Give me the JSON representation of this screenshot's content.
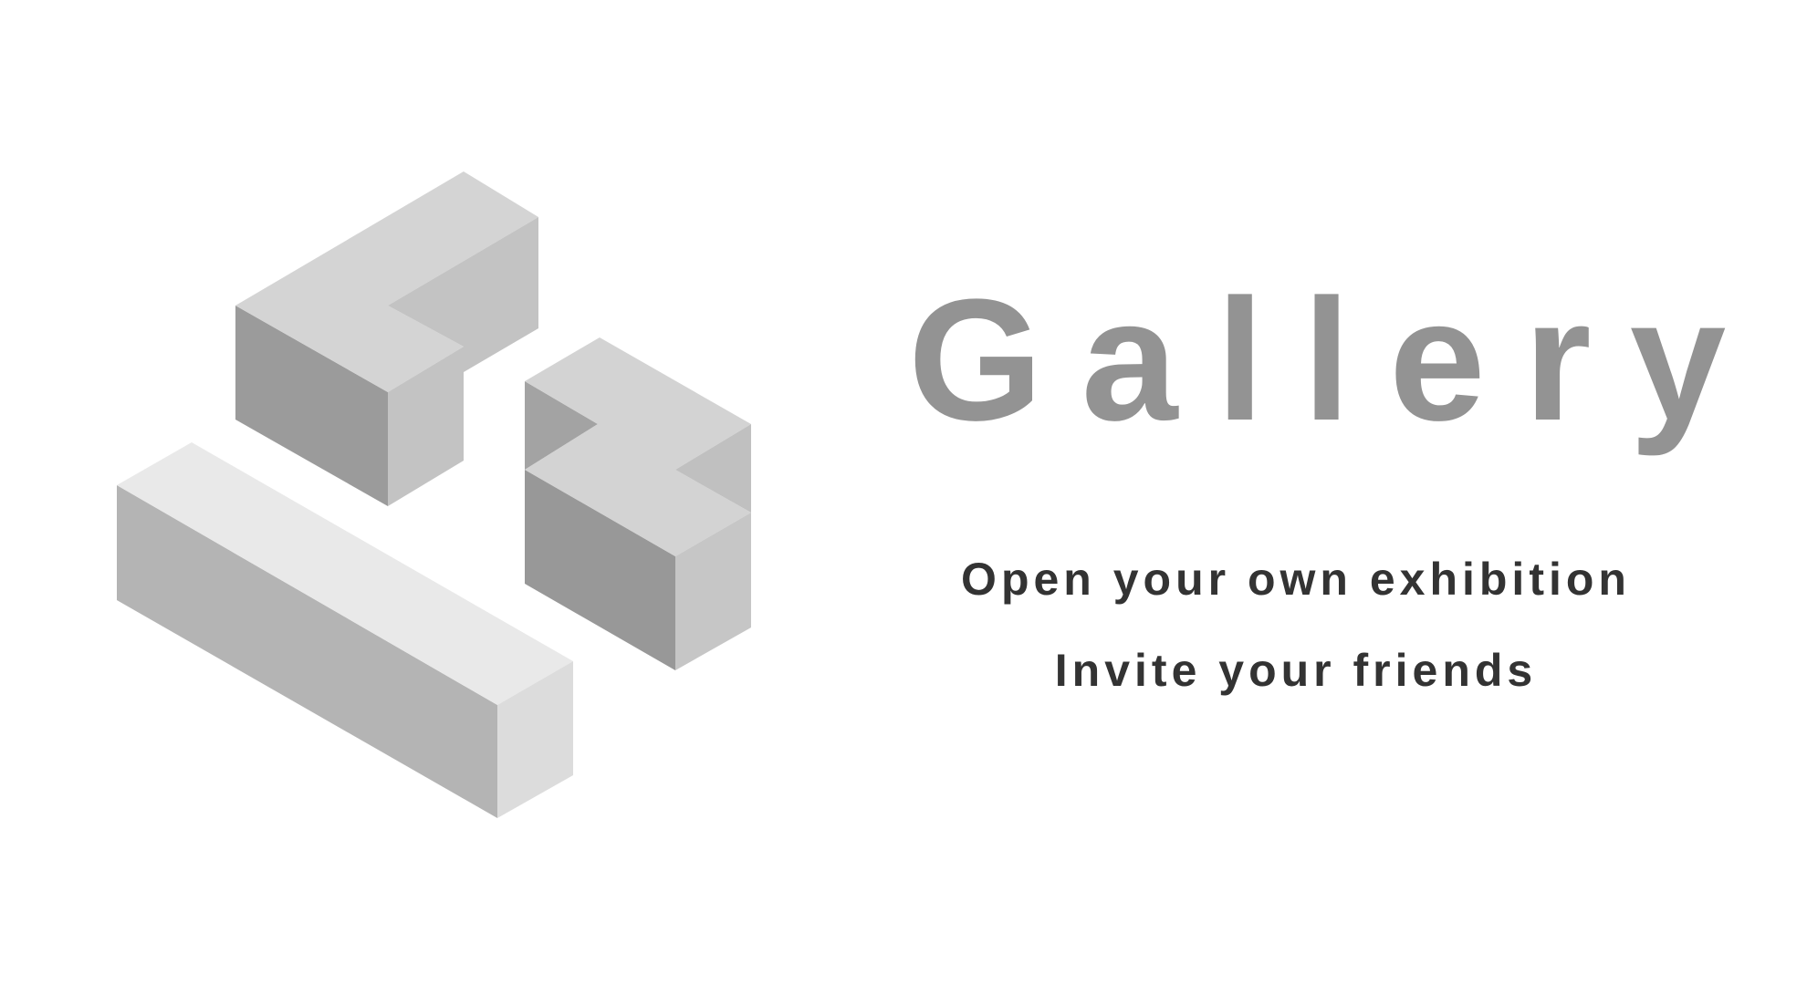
{
  "brand": {
    "logo_icon": "isometric-blocks-logo-icon",
    "title": "Gallery",
    "title_color": "#939393"
  },
  "taglines": {
    "line1": "Open your own exhibition",
    "line2": "Invite your friends",
    "color": "#333333"
  },
  "colors": {
    "background": "#ffffff",
    "face_top": "#d3d3d3",
    "face_left": "#9a9a9a",
    "face_right": "#c2c2c2",
    "bar_top": "#e9e9e9",
    "bar_left": "#b3b3b3",
    "bar_right": "#dcdcdc"
  }
}
